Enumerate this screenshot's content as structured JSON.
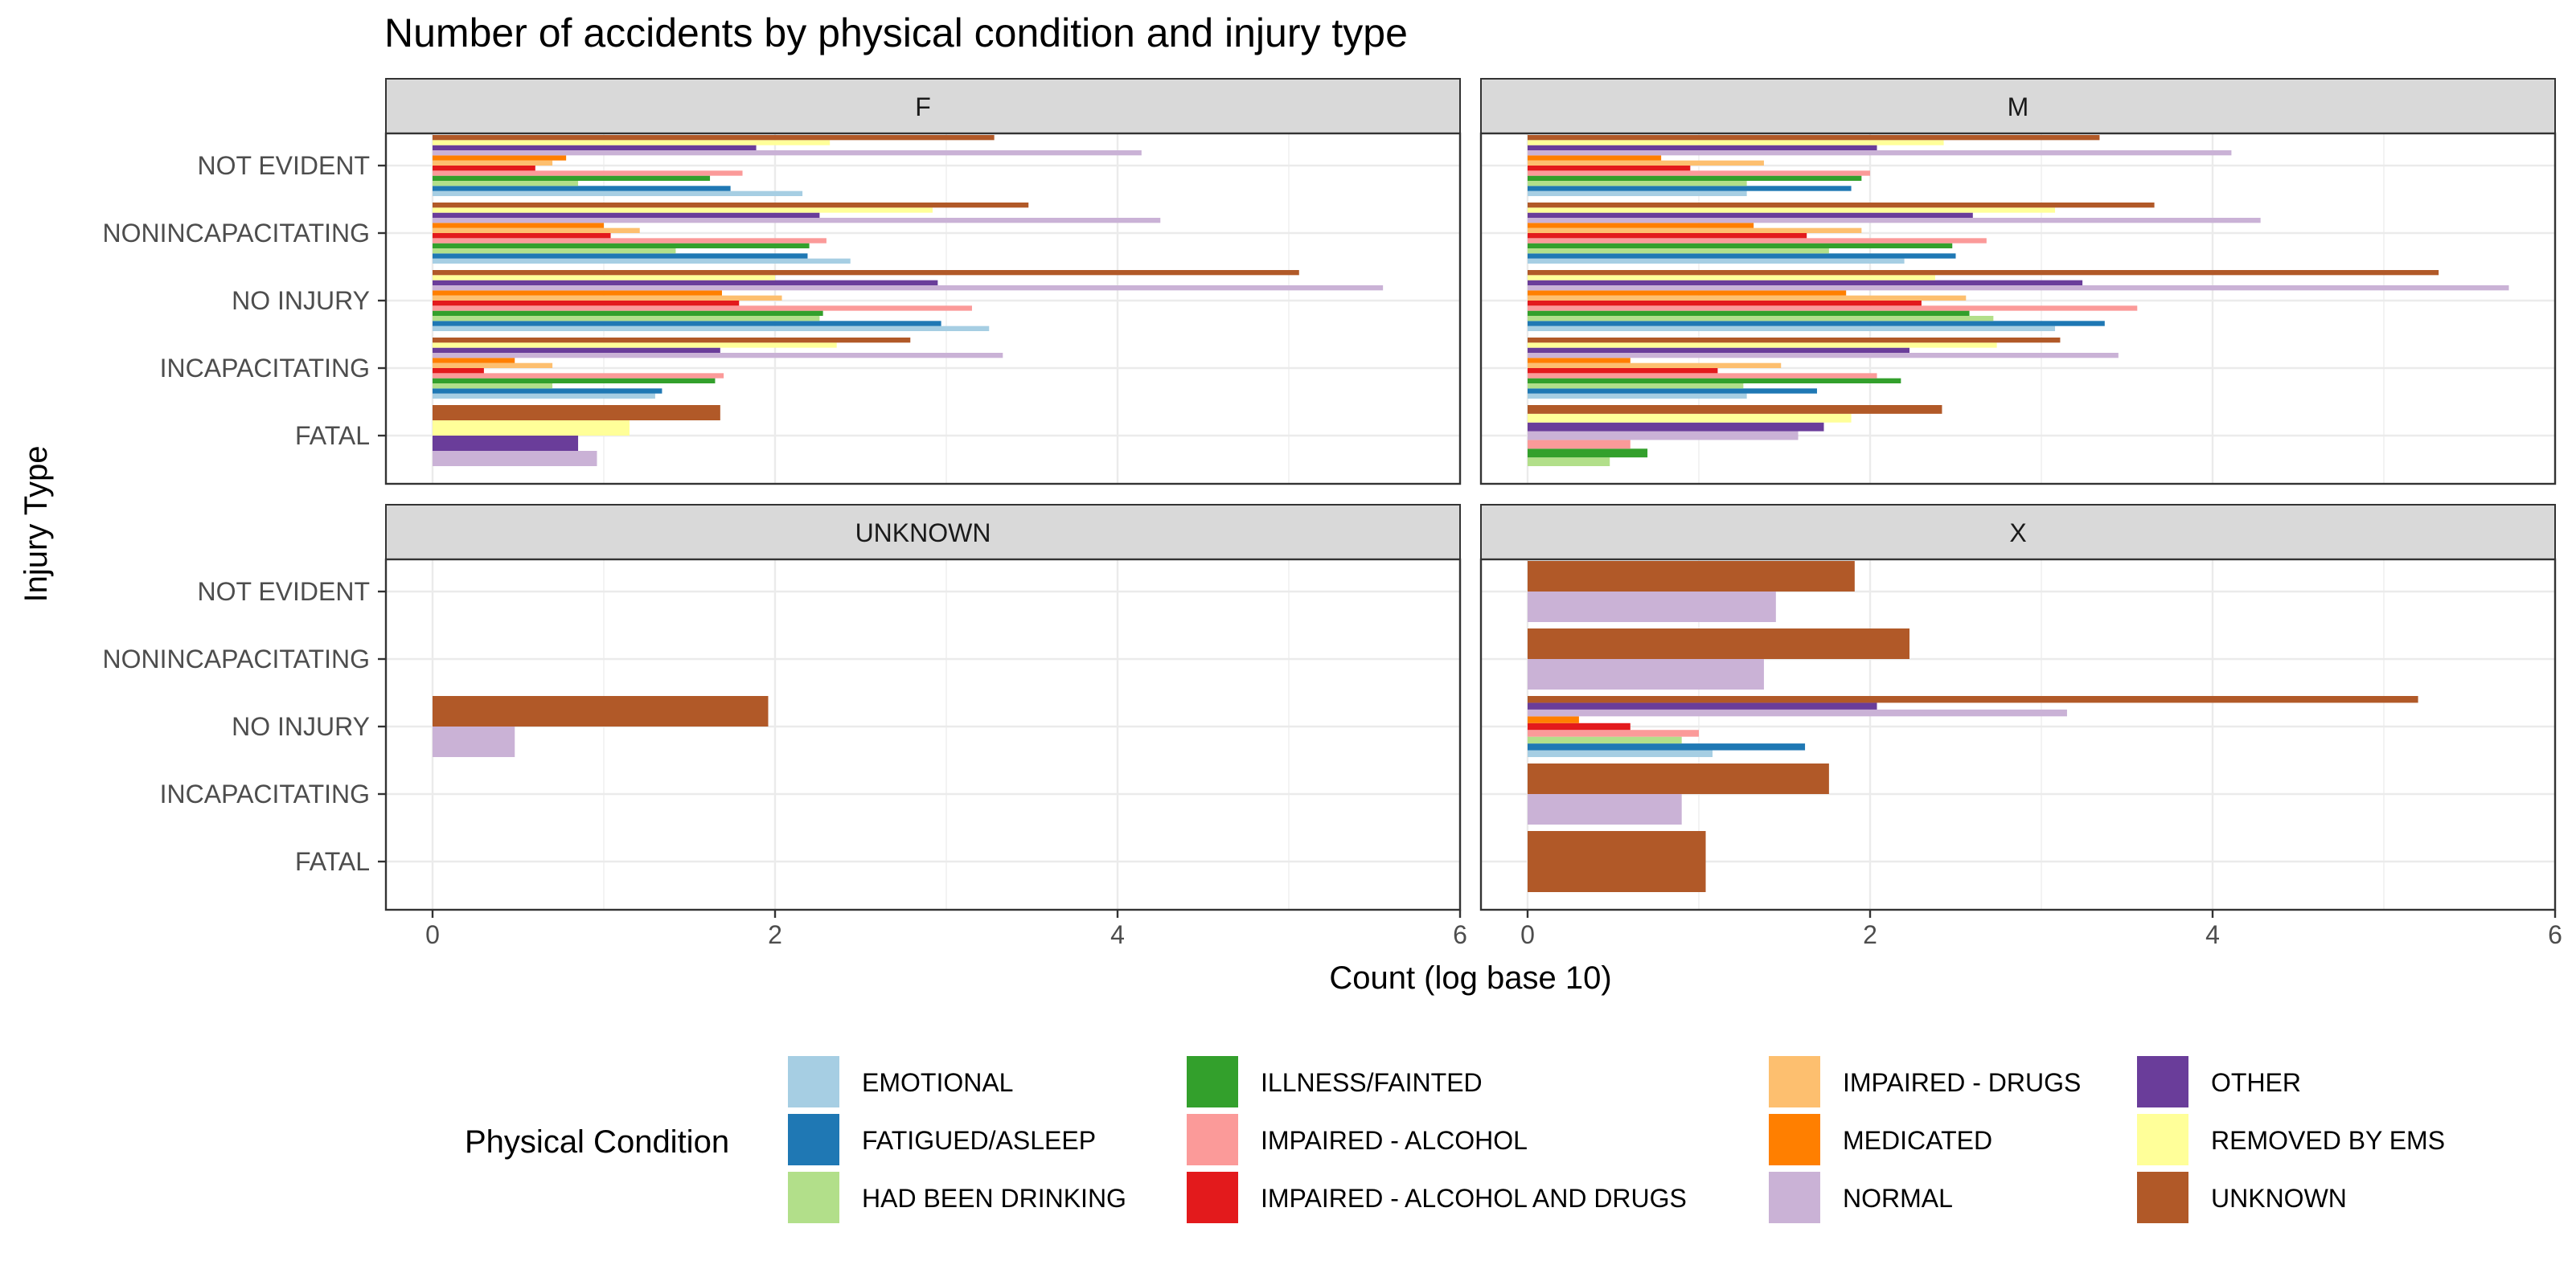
{
  "chart_data": {
    "type": "bar",
    "orientation": "horizontal",
    "title": "Number of accidents by physical condition and injury type",
    "xlabel": "Count (log base 10)",
    "ylabel": "Injury Type",
    "xlim": [
      0,
      6
    ],
    "xticks": [
      "0",
      "2",
      "4",
      "6"
    ],
    "categories": [
      "FATAL",
      "INCAPACITATING",
      "NO INJURY",
      "NONINCAPACITATING",
      "NOT EVIDENT"
    ],
    "legend": {
      "title": "Physical Condition",
      "position": "bottom",
      "entries": [
        {
          "name": "EMOTIONAL",
          "color": "#a6cee3"
        },
        {
          "name": "FATIGUED/ASLEEP",
          "color": "#1f78b4"
        },
        {
          "name": "HAD BEEN DRINKING",
          "color": "#b2df8a"
        },
        {
          "name": "ILLNESS/FAINTED",
          "color": "#33a02c"
        },
        {
          "name": "IMPAIRED - ALCOHOL",
          "color": "#fb9a99"
        },
        {
          "name": "IMPAIRED - ALCOHOL AND DRUGS",
          "color": "#e31a1c"
        },
        {
          "name": "IMPAIRED - DRUGS",
          "color": "#fdbf6f"
        },
        {
          "name": "MEDICATED",
          "color": "#ff7f00"
        },
        {
          "name": "NORMAL",
          "color": "#cab2d6"
        },
        {
          "name": "OTHER",
          "color": "#6a3d9a"
        },
        {
          "name": "REMOVED BY EMS",
          "color": "#ffff99"
        },
        {
          "name": "UNKNOWN",
          "color": "#b15928"
        }
      ]
    },
    "facets": [
      {
        "name": "F",
        "groups": [
          {
            "injury": "FATAL",
            "bars": [
              {
                "condition": "NORMAL",
                "value": 0.96
              },
              {
                "condition": "OTHER",
                "value": 0.85
              },
              {
                "condition": "REMOVED BY EMS",
                "value": 1.15
              },
              {
                "condition": "UNKNOWN",
                "value": 1.68
              }
            ]
          },
          {
            "injury": "INCAPACITATING",
            "bars": [
              {
                "condition": "EMOTIONAL",
                "value": 1.3
              },
              {
                "condition": "FATIGUED/ASLEEP",
                "value": 1.34
              },
              {
                "condition": "HAD BEEN DRINKING",
                "value": 0.7
              },
              {
                "condition": "ILLNESS/FAINTED",
                "value": 1.65
              },
              {
                "condition": "IMPAIRED - ALCOHOL",
                "value": 1.7
              },
              {
                "condition": "IMPAIRED - ALCOHOL AND DRUGS",
                "value": 0.3
              },
              {
                "condition": "IMPAIRED - DRUGS",
                "value": 0.7
              },
              {
                "condition": "MEDICATED",
                "value": 0.48
              },
              {
                "condition": "NORMAL",
                "value": 3.33
              },
              {
                "condition": "OTHER",
                "value": 1.68
              },
              {
                "condition": "REMOVED BY EMS",
                "value": 2.36
              },
              {
                "condition": "UNKNOWN",
                "value": 2.79
              }
            ]
          },
          {
            "injury": "NO INJURY",
            "bars": [
              {
                "condition": "EMOTIONAL",
                "value": 3.25
              },
              {
                "condition": "FATIGUED/ASLEEP",
                "value": 2.97
              },
              {
                "condition": "HAD BEEN DRINKING",
                "value": 2.26
              },
              {
                "condition": "ILLNESS/FAINTED",
                "value": 2.28
              },
              {
                "condition": "IMPAIRED - ALCOHOL",
                "value": 3.15
              },
              {
                "condition": "IMPAIRED - ALCOHOL AND DRUGS",
                "value": 1.79
              },
              {
                "condition": "IMPAIRED - DRUGS",
                "value": 2.04
              },
              {
                "condition": "MEDICATED",
                "value": 1.69
              },
              {
                "condition": "NORMAL",
                "value": 5.55
              },
              {
                "condition": "OTHER",
                "value": 2.95
              },
              {
                "condition": "REMOVED BY EMS",
                "value": 2.0
              },
              {
                "condition": "UNKNOWN",
                "value": 5.06
              }
            ]
          },
          {
            "injury": "NONINCAPACITATING",
            "bars": [
              {
                "condition": "EMOTIONAL",
                "value": 2.44
              },
              {
                "condition": "FATIGUED/ASLEEP",
                "value": 2.19
              },
              {
                "condition": "HAD BEEN DRINKING",
                "value": 1.42
              },
              {
                "condition": "ILLNESS/FAINTED",
                "value": 2.2
              },
              {
                "condition": "IMPAIRED - ALCOHOL",
                "value": 2.3
              },
              {
                "condition": "IMPAIRED - ALCOHOL AND DRUGS",
                "value": 1.04
              },
              {
                "condition": "IMPAIRED - DRUGS",
                "value": 1.21
              },
              {
                "condition": "MEDICATED",
                "value": 1.0
              },
              {
                "condition": "NORMAL",
                "value": 4.25
              },
              {
                "condition": "OTHER",
                "value": 2.26
              },
              {
                "condition": "REMOVED BY EMS",
                "value": 2.92
              },
              {
                "condition": "UNKNOWN",
                "value": 3.48
              }
            ]
          },
          {
            "injury": "NOT EVIDENT",
            "bars": [
              {
                "condition": "EMOTIONAL",
                "value": 2.16
              },
              {
                "condition": "FATIGUED/ASLEEP",
                "value": 1.74
              },
              {
                "condition": "HAD BEEN DRINKING",
                "value": 0.85
              },
              {
                "condition": "ILLNESS/FAINTED",
                "value": 1.62
              },
              {
                "condition": "IMPAIRED - ALCOHOL",
                "value": 1.81
              },
              {
                "condition": "IMPAIRED - ALCOHOL AND DRUGS",
                "value": 0.6
              },
              {
                "condition": "IMPAIRED - DRUGS",
                "value": 0.7
              },
              {
                "condition": "MEDICATED",
                "value": 0.78
              },
              {
                "condition": "NORMAL",
                "value": 4.14
              },
              {
                "condition": "OTHER",
                "value": 1.89
              },
              {
                "condition": "REMOVED BY EMS",
                "value": 2.32
              },
              {
                "condition": "UNKNOWN",
                "value": 3.28
              }
            ]
          }
        ]
      },
      {
        "name": "M",
        "groups": [
          {
            "injury": "FATAL",
            "bars": [
              {
                "condition": "HAD BEEN DRINKING",
                "value": 0.48
              },
              {
                "condition": "ILLNESS/FAINTED",
                "value": 0.7
              },
              {
                "condition": "IMPAIRED - ALCOHOL",
                "value": 0.6
              },
              {
                "condition": "NORMAL",
                "value": 1.58
              },
              {
                "condition": "OTHER",
                "value": 1.73
              },
              {
                "condition": "REMOVED BY EMS",
                "value": 1.89
              },
              {
                "condition": "UNKNOWN",
                "value": 2.42
              }
            ]
          },
          {
            "injury": "INCAPACITATING",
            "bars": [
              {
                "condition": "EMOTIONAL",
                "value": 1.28
              },
              {
                "condition": "FATIGUED/ASLEEP",
                "value": 1.69
              },
              {
                "condition": "HAD BEEN DRINKING",
                "value": 1.26
              },
              {
                "condition": "ILLNESS/FAINTED",
                "value": 2.18
              },
              {
                "condition": "IMPAIRED - ALCOHOL",
                "value": 2.04
              },
              {
                "condition": "IMPAIRED - ALCOHOL AND DRUGS",
                "value": 1.11
              },
              {
                "condition": "IMPAIRED - DRUGS",
                "value": 1.48
              },
              {
                "condition": "MEDICATED",
                "value": 0.6
              },
              {
                "condition": "NORMAL",
                "value": 3.45
              },
              {
                "condition": "OTHER",
                "value": 2.23
              },
              {
                "condition": "REMOVED BY EMS",
                "value": 2.74
              },
              {
                "condition": "UNKNOWN",
                "value": 3.11
              }
            ]
          },
          {
            "injury": "NO INJURY",
            "bars": [
              {
                "condition": "EMOTIONAL",
                "value": 3.08
              },
              {
                "condition": "FATIGUED/ASLEEP",
                "value": 3.37
              },
              {
                "condition": "HAD BEEN DRINKING",
                "value": 2.72
              },
              {
                "condition": "ILLNESS/FAINTED",
                "value": 2.58
              },
              {
                "condition": "IMPAIRED - ALCOHOL",
                "value": 3.56
              },
              {
                "condition": "IMPAIRED - ALCOHOL AND DRUGS",
                "value": 2.3
              },
              {
                "condition": "IMPAIRED - DRUGS",
                "value": 2.56
              },
              {
                "condition": "MEDICATED",
                "value": 1.86
              },
              {
                "condition": "NORMAL",
                "value": 5.73
              },
              {
                "condition": "OTHER",
                "value": 3.24
              },
              {
                "condition": "REMOVED BY EMS",
                "value": 2.38
              },
              {
                "condition": "UNKNOWN",
                "value": 5.32
              }
            ]
          },
          {
            "injury": "NONINCAPACITATING",
            "bars": [
              {
                "condition": "EMOTIONAL",
                "value": 2.2
              },
              {
                "condition": "FATIGUED/ASLEEP",
                "value": 2.5
              },
              {
                "condition": "HAD BEEN DRINKING",
                "value": 1.76
              },
              {
                "condition": "ILLNESS/FAINTED",
                "value": 2.48
              },
              {
                "condition": "IMPAIRED - ALCOHOL",
                "value": 2.68
              },
              {
                "condition": "IMPAIRED - ALCOHOL AND DRUGS",
                "value": 1.63
              },
              {
                "condition": "IMPAIRED - DRUGS",
                "value": 1.95
              },
              {
                "condition": "MEDICATED",
                "value": 1.32
              },
              {
                "condition": "NORMAL",
                "value": 4.28
              },
              {
                "condition": "OTHER",
                "value": 2.6
              },
              {
                "condition": "REMOVED BY EMS",
                "value": 3.08
              },
              {
                "condition": "UNKNOWN",
                "value": 3.66
              }
            ]
          },
          {
            "injury": "NOT EVIDENT",
            "bars": [
              {
                "condition": "EMOTIONAL",
                "value": 1.28
              },
              {
                "condition": "FATIGUED/ASLEEP",
                "value": 1.89
              },
              {
                "condition": "HAD BEEN DRINKING",
                "value": 1.28
              },
              {
                "condition": "ILLNESS/FAINTED",
                "value": 1.95
              },
              {
                "condition": "IMPAIRED - ALCOHOL",
                "value": 2.0
              },
              {
                "condition": "IMPAIRED - ALCOHOL AND DRUGS",
                "value": 0.95
              },
              {
                "condition": "IMPAIRED - DRUGS",
                "value": 1.38
              },
              {
                "condition": "MEDICATED",
                "value": 0.78
              },
              {
                "condition": "NORMAL",
                "value": 4.11
              },
              {
                "condition": "OTHER",
                "value": 2.04
              },
              {
                "condition": "REMOVED BY EMS",
                "value": 2.43
              },
              {
                "condition": "UNKNOWN",
                "value": 3.34
              }
            ]
          }
        ]
      },
      {
        "name": "UNKNOWN",
        "groups": [
          {
            "injury": "FATAL",
            "bars": []
          },
          {
            "injury": "INCAPACITATING",
            "bars": []
          },
          {
            "injury": "NO INJURY",
            "bars": [
              {
                "condition": "NORMAL",
                "value": 0.48
              },
              {
                "condition": "UNKNOWN",
                "value": 1.96
              }
            ]
          },
          {
            "injury": "NONINCAPACITATING",
            "bars": []
          },
          {
            "injury": "NOT EVIDENT",
            "bars": []
          }
        ]
      },
      {
        "name": "X",
        "groups": [
          {
            "injury": "FATAL",
            "bars": [
              {
                "condition": "UNKNOWN",
                "value": 1.04
              }
            ]
          },
          {
            "injury": "INCAPACITATING",
            "bars": [
              {
                "condition": "NORMAL",
                "value": 0.9
              },
              {
                "condition": "UNKNOWN",
                "value": 1.76
              }
            ]
          },
          {
            "injury": "NO INJURY",
            "bars": [
              {
                "condition": "EMOTIONAL",
                "value": 1.08
              },
              {
                "condition": "FATIGUED/ASLEEP",
                "value": 1.62
              },
              {
                "condition": "HAD BEEN DRINKING",
                "value": 0.9
              },
              {
                "condition": "IMPAIRED - ALCOHOL",
                "value": 1.0
              },
              {
                "condition": "IMPAIRED - ALCOHOL AND DRUGS",
                "value": 0.6
              },
              {
                "condition": "MEDICATED",
                "value": 0.3
              },
              {
                "condition": "NORMAL",
                "value": 3.15
              },
              {
                "condition": "OTHER",
                "value": 2.04
              },
              {
                "condition": "UNKNOWN",
                "value": 5.2
              }
            ]
          },
          {
            "injury": "NONINCAPACITATING",
            "bars": [
              {
                "condition": "NORMAL",
                "value": 1.38
              },
              {
                "condition": "UNKNOWN",
                "value": 2.23
              }
            ]
          },
          {
            "injury": "NOT EVIDENT",
            "bars": [
              {
                "condition": "NORMAL",
                "value": 1.45
              },
              {
                "condition": "UNKNOWN",
                "value": 1.91
              }
            ]
          }
        ]
      }
    ]
  }
}
